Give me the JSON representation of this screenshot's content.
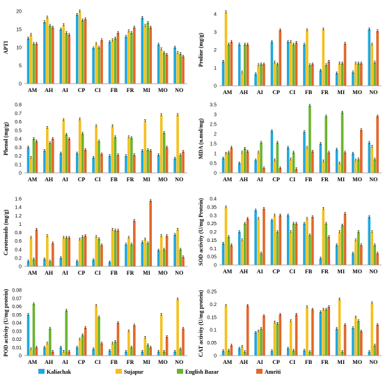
{
  "legend": [
    "Kaliachak",
    "Sujapur",
    "English Bazar",
    "Amriti"
  ],
  "colors": [
    "#1fa8dd",
    "#f4c01e",
    "#6ab42d",
    "#e2672a"
  ],
  "chart_data": [
    {
      "type": "bar",
      "ylabel": "APTI",
      "ylim": [
        0,
        20
      ],
      "ticks": [
        0,
        5,
        10,
        15,
        20
      ],
      "categories": [
        "AM",
        "AH",
        "AI",
        "CP",
        "CI",
        "FB",
        "FR",
        "MI",
        "MO",
        "NO"
      ],
      "series": [
        {
          "name": "Kaliachak",
          "values": [
            12.5,
            17,
            15,
            19,
            9.8,
            11.5,
            13,
            18.2,
            10.8,
            10
          ]
        },
        {
          "name": "Sujapur",
          "values": [
            13.5,
            18.3,
            16.2,
            20,
            11,
            12,
            14.5,
            16,
            9.5,
            8.5
          ]
        },
        {
          "name": "English Bazar",
          "values": [
            11,
            16,
            14,
            17.5,
            10,
            12.5,
            14,
            16.8,
            8.5,
            8.2
          ]
        },
        {
          "name": "Amriti",
          "values": [
            11,
            15.5,
            13.5,
            17.8,
            12,
            14,
            15.5,
            15.5,
            8,
            7.5
          ]
        }
      ]
    },
    {
      "type": "bar",
      "ylabel": "Proline (mg/g)",
      "ylim": [
        0,
        4
      ],
      "ticks": [
        0,
        1,
        2,
        3,
        4
      ],
      "categories": [
        "AM",
        "AH",
        "AI",
        "CP",
        "CI",
        "FB",
        "FR",
        "MI",
        "MO",
        "NO"
      ],
      "series": [
        {
          "name": "Kaliachak",
          "values": [
            1.35,
            2.3,
            0.65,
            2.45,
            2.45,
            2.3,
            0.85,
            0.7,
            0.75,
            3.15
          ]
        },
        {
          "name": "Sujapur",
          "values": [
            4.1,
            0.75,
            1.15,
            1.3,
            2.45,
            3.1,
            3.15,
            1.25,
            1.25,
            2.3
          ]
        },
        {
          "name": "English Bazar",
          "values": [
            2.3,
            2.3,
            1.2,
            1.2,
            2.3,
            1.15,
            1.15,
            1.25,
            1.25,
            1.3
          ]
        },
        {
          "name": "Amriti",
          "values": [
            2.45,
            2.3,
            1.2,
            3.1,
            2.4,
            1.2,
            1.35,
            2.35,
            1.25,
            3.05
          ]
        }
      ]
    },
    {
      "type": "bar",
      "ylabel": "Phenol (mg/g)",
      "ylim": [
        0,
        0.8
      ],
      "ticks": [
        0,
        0.1,
        0.2,
        0.3,
        0.4,
        0.5,
        0.6,
        0.7,
        0.8
      ],
      "categories": [
        "AM",
        "AH",
        "AI",
        "CP",
        "CI",
        "FB",
        "FR",
        "MI",
        "MO",
        "NO"
      ],
      "series": [
        {
          "name": "Kaliachak",
          "values": [
            0.3,
            0.26,
            0.23,
            0.23,
            0.18,
            0.2,
            0.2,
            0.26,
            0.21,
            0.17
          ]
        },
        {
          "name": "Sujapur",
          "values": [
            0.18,
            0.53,
            0.62,
            0.63,
            0.55,
            0.55,
            0.42,
            0.61,
            0.68,
            0.68
          ]
        },
        {
          "name": "English Bazar",
          "values": [
            0.4,
            0.35,
            0.45,
            0.46,
            0.37,
            0.42,
            0.41,
            0.27,
            0.47,
            0.21
          ]
        },
        {
          "name": "Amriti",
          "values": [
            0.37,
            0.4,
            0.4,
            0.27,
            0.22,
            0.21,
            0.21,
            0.26,
            0.3,
            0.25
          ]
        }
      ]
    },
    {
      "type": "bar",
      "ylabel": "MDA (n.mol/mg)",
      "ylim": [
        0,
        3.5
      ],
      "ticks": [
        0,
        0.5,
        1,
        1.5,
        2,
        2.5,
        3,
        3.5
      ],
      "categories": [
        "AM",
        "AH",
        "AI",
        "CP",
        "CI",
        "FB",
        "FR",
        "MI",
        "MO",
        "NO"
      ],
      "series": [
        {
          "name": "Kaliachak",
          "values": [
            0.75,
            0.5,
            0.65,
            2.15,
            1.3,
            2.1,
            1.5,
            1.2,
            1.0,
            1.55
          ]
        },
        {
          "name": "Sujapur",
          "values": [
            1.0,
            1.05,
            1.05,
            0.65,
            0.7,
            1.3,
            0.6,
            0.5,
            0.65,
            1.35
          ]
        },
        {
          "name": "English Bazar",
          "values": [
            1.05,
            1.25,
            1.55,
            1.55,
            1.05,
            3.45,
            2.9,
            3.1,
            0.7,
            0.7
          ]
        },
        {
          "name": "Amriti",
          "values": [
            1.3,
            1.1,
            0.25,
            0.25,
            0.2,
            1.1,
            1.05,
            1.05,
            2.2,
            2.9
          ]
        }
      ]
    },
    {
      "type": "bar",
      "ylabel": "Carotenoids (mg/g)",
      "ylim": [
        0,
        1.6
      ],
      "ticks": [
        0,
        0.2,
        0.4,
        0.6,
        0.8,
        1,
        1.2,
        1.4,
        1.6
      ],
      "categories": [
        "AM",
        "AH",
        "AI",
        "CP",
        "CI",
        "FB",
        "FR",
        "MI",
        "MO",
        "NO"
      ],
      "series": [
        {
          "name": "Kaliachak",
          "values": [
            0.12,
            0.17,
            0.2,
            0.12,
            0.15,
            0.1,
            0.52,
            0.57,
            0.38,
            0.75
          ]
        },
        {
          "name": "Sujapur",
          "values": [
            0.68,
            0.72,
            0.68,
            0.64,
            0.7,
            0.87,
            0.68,
            0.64,
            0.72,
            0.87
          ]
        },
        {
          "name": "English Bazar",
          "values": [
            0.17,
            0.12,
            0.68,
            0.7,
            0.65,
            0.85,
            0.52,
            0.55,
            0.4,
            0.4
          ]
        },
        {
          "name": "Amriti",
          "values": [
            0.87,
            0.55,
            0.68,
            0.72,
            0.5,
            0.85,
            1.08,
            1.55,
            0.72,
            0.22
          ]
        }
      ]
    },
    {
      "type": "bar",
      "ylabel": "SOD activity (U/mg Protein)",
      "ylim": [
        0,
        0.4
      ],
      "ticks": [
        0,
        0.05,
        0.1,
        0.15,
        0.2,
        0.25,
        0.3,
        0.35,
        0.4
      ],
      "categories": [
        "AM",
        "AH",
        "AI",
        "CP",
        "CI",
        "FB",
        "FR",
        "MI",
        "MO",
        "NO"
      ],
      "series": [
        {
          "name": "Kaliachak",
          "values": [
            0.13,
            0.2,
            0.33,
            0.27,
            0.3,
            0.25,
            0.04,
            0.12,
            0.07,
            0.29
          ]
        },
        {
          "name": "Sujapur",
          "values": [
            0.35,
            0.15,
            0.28,
            0.3,
            0.2,
            0.28,
            0.34,
            0.2,
            0.15,
            0.2
          ]
        },
        {
          "name": "English Bazar",
          "values": [
            0.17,
            0.25,
            0.07,
            0.2,
            0.25,
            0.18,
            0.25,
            0.24,
            0.2,
            0.12
          ]
        },
        {
          "name": "Amriti",
          "values": [
            0.12,
            0.28,
            0.34,
            0.3,
            0.25,
            0.29,
            0.17,
            0.31,
            0.12,
            0.07
          ]
        }
      ]
    },
    {
      "type": "bar",
      "ylabel": "POD activity (U/mg protein)",
      "ylim": [
        0,
        0.08
      ],
      "ticks": [
        0,
        0.01,
        0.02,
        0.03,
        0.04,
        0.05,
        0.06,
        0.07,
        0.08
      ],
      "categories": [
        "AM",
        "AH",
        "AI",
        "CP",
        "CI",
        "FB",
        "FR",
        "MI",
        "MO",
        "NO"
      ],
      "series": [
        {
          "name": "Kaliachak",
          "values": [
            0.05,
            0.01,
            0.01,
            0.01,
            0.008,
            0.006,
            0.005,
            0.005,
            0.005,
            0.005
          ]
        },
        {
          "name": "Sujapur",
          "values": [
            0.008,
            0.015,
            0.005,
            0.02,
            0.061,
            0.015,
            0.03,
            0.022,
            0.05,
            0.069
          ]
        },
        {
          "name": "English Bazar",
          "values": [
            0.063,
            0.033,
            0.055,
            0.025,
            0.047,
            0.017,
            0.01,
            0.013,
            0.005,
            0.008
          ]
        },
        {
          "name": "Amriti",
          "values": [
            0.01,
            0.005,
            0.005,
            0.034,
            0.015,
            0.04,
            0.037,
            0.01,
            0.023,
            0.033
          ]
        }
      ]
    },
    {
      "type": "bar",
      "ylabel": "CAT activity (U/mg protein)",
      "ylim": [
        0,
        0.25
      ],
      "ticks": [
        0,
        0.05,
        0.1,
        0.15,
        0.2,
        0.25
      ],
      "categories": [
        "AM",
        "AH",
        "AI",
        "CP",
        "CI",
        "FB",
        "FR",
        "MI",
        "MO",
        "NO"
      ],
      "series": [
        {
          "name": "Kaliachak",
          "values": [
            0.018,
            0.028,
            0.09,
            0.018,
            0.028,
            0.02,
            0.17,
            0.105,
            0.108,
            0.015
          ]
        },
        {
          "name": "Sujapur",
          "values": [
            0.195,
            0.035,
            0.095,
            0.13,
            0.135,
            0.19,
            0.18,
            0.22,
            0.15,
            0.205
          ]
        },
        {
          "name": "English Bazar",
          "values": [
            0.02,
            0.015,
            0.105,
            0.125,
            0.02,
            0.015,
            0.18,
            0.015,
            0.135,
            0.04
          ]
        },
        {
          "name": "Amriti",
          "values": [
            0.04,
            0.195,
            0.155,
            0.16,
            0.16,
            0.18,
            0.19,
            0.12,
            0.095,
            0.12
          ]
        }
      ]
    }
  ]
}
